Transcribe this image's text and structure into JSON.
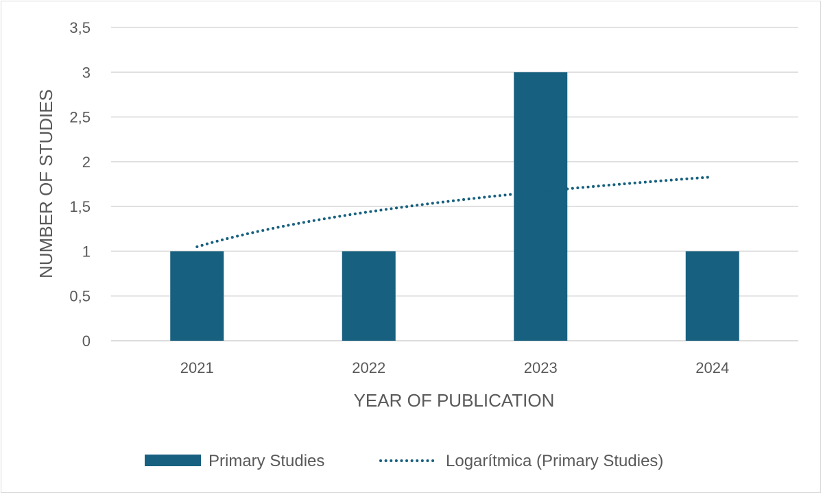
{
  "chart_data": {
    "type": "bar",
    "title": "",
    "xlabel": "YEAR OF PUBLICATION",
    "ylabel": "NUMBER OF STUDIES",
    "categories": [
      "2021",
      "2022",
      "2023",
      "2024"
    ],
    "series": [
      {
        "name": "Primary Studies",
        "values": [
          1,
          1,
          3,
          1
        ],
        "color": "#17607f"
      }
    ],
    "trendline": {
      "name": "Logarítmica (Primary Studies)",
      "type": "logarithmic",
      "values": [
        1.05,
        1.46,
        1.65,
        1.83
      ],
      "color": "#17607f"
    },
    "ylim": [
      0,
      3.5
    ],
    "yticks": [
      "0",
      "0,5",
      "1",
      "1,5",
      "2",
      "2,5",
      "3",
      "3,5"
    ],
    "grid": true,
    "legend_position": "bottom"
  }
}
